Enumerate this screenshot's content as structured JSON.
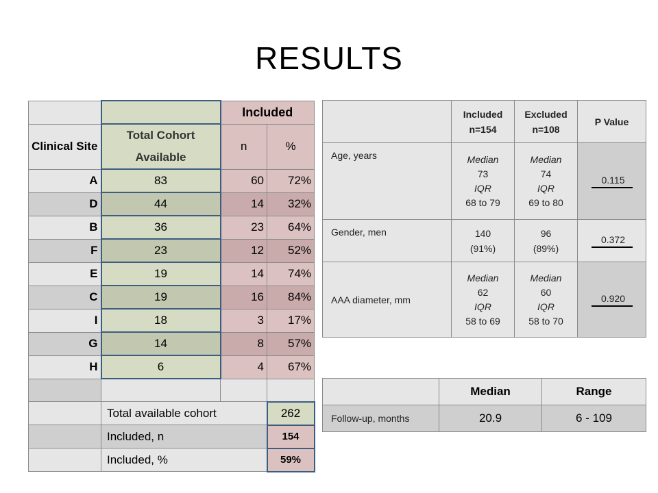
{
  "title": "RESULTS",
  "site_table": {
    "header_included": "Included",
    "col_site": "Clinical Site",
    "col_total": "Total Cohort Available",
    "col_n": "n",
    "col_pct": "%",
    "rows": [
      {
        "site": "A",
        "total": "83",
        "n": "60",
        "pct": "72%"
      },
      {
        "site": "D",
        "total": "44",
        "n": "14",
        "pct": "32%"
      },
      {
        "site": "B",
        "total": "36",
        "n": "23",
        "pct": "64%"
      },
      {
        "site": "F",
        "total": "23",
        "n": "12",
        "pct": "52%"
      },
      {
        "site": "E",
        "total": "19",
        "n": "14",
        "pct": "74%"
      },
      {
        "site": "C",
        "total": "19",
        "n": "16",
        "pct": "84%"
      },
      {
        "site": "I",
        "total": "18",
        "n": "3",
        "pct": "17%"
      },
      {
        "site": "G",
        "total": "14",
        "n": "8",
        "pct": "57%"
      },
      {
        "site": "H",
        "total": "6",
        "n": "4",
        "pct": "67%"
      }
    ],
    "summary": [
      {
        "label": "Total available cohort",
        "value": "262"
      },
      {
        "label": "Included, n",
        "value": "154"
      },
      {
        "label": "Included, %",
        "value": "59%"
      }
    ]
  },
  "demo_table": {
    "headers": [
      "Included n=154",
      "Excluded n=108",
      "P Value"
    ],
    "rows": [
      {
        "label": "Age, years",
        "inc": [
          "Median",
          "73",
          "IQR",
          "68 to 79"
        ],
        "exc": [
          "Median",
          "74",
          "IQR",
          "69 to 80"
        ],
        "p": "0.115"
      },
      {
        "label": "Gender, men",
        "inc": [
          "140",
          "(91%)"
        ],
        "exc": [
          "96",
          "(89%)"
        ],
        "p": "0.372"
      },
      {
        "label": "AAA diameter, mm",
        "inc": [
          "Median",
          "62",
          "IQR",
          "58 to 69"
        ],
        "exc": [
          "Median",
          "60",
          "IQR",
          "58 to 70"
        ],
        "p": "0.920"
      }
    ]
  },
  "followup_table": {
    "headers": [
      "Median",
      "Range"
    ],
    "row": {
      "label": "Follow-up, months",
      "median": "20.9",
      "range": "6 - 109"
    }
  },
  "colors": {
    "grey_light": "#e6e6e6",
    "grey_dark": "#cfcfcf",
    "green_light": "#d5dcc3",
    "green_dark": "#c2c8b0",
    "pink_light": "#dcc1c1",
    "pink_dark": "#c9abab",
    "highlight_border": "#3e5c80"
  }
}
